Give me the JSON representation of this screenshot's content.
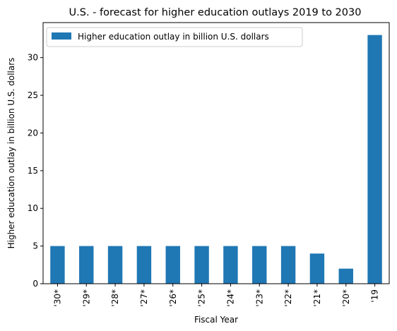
{
  "chart_data": {
    "type": "bar",
    "title": "U.S. - forecast for higher education outlays 2019 to 2030",
    "xlabel": "Fiscal Year",
    "ylabel": "Higher education outlay in billion U.S. dollars",
    "categories": [
      "'30*",
      "'29*",
      "'28*",
      "'27*",
      "'26*",
      "'25*",
      "'24*",
      "'23*",
      "'22*",
      "'21*",
      "'20*",
      "'19"
    ],
    "series": [
      {
        "name": "Higher education outlay in billion U.S. dollars",
        "values": [
          5,
          5,
          5,
          5,
          5,
          5,
          5,
          5,
          5,
          4,
          2,
          33
        ],
        "color": "#1f77b4"
      }
    ],
    "ylim": [
      0,
      34.65
    ],
    "yticks": [
      0,
      5,
      10,
      15,
      20,
      25,
      30
    ],
    "grid": false,
    "legend_position": "top-left"
  }
}
